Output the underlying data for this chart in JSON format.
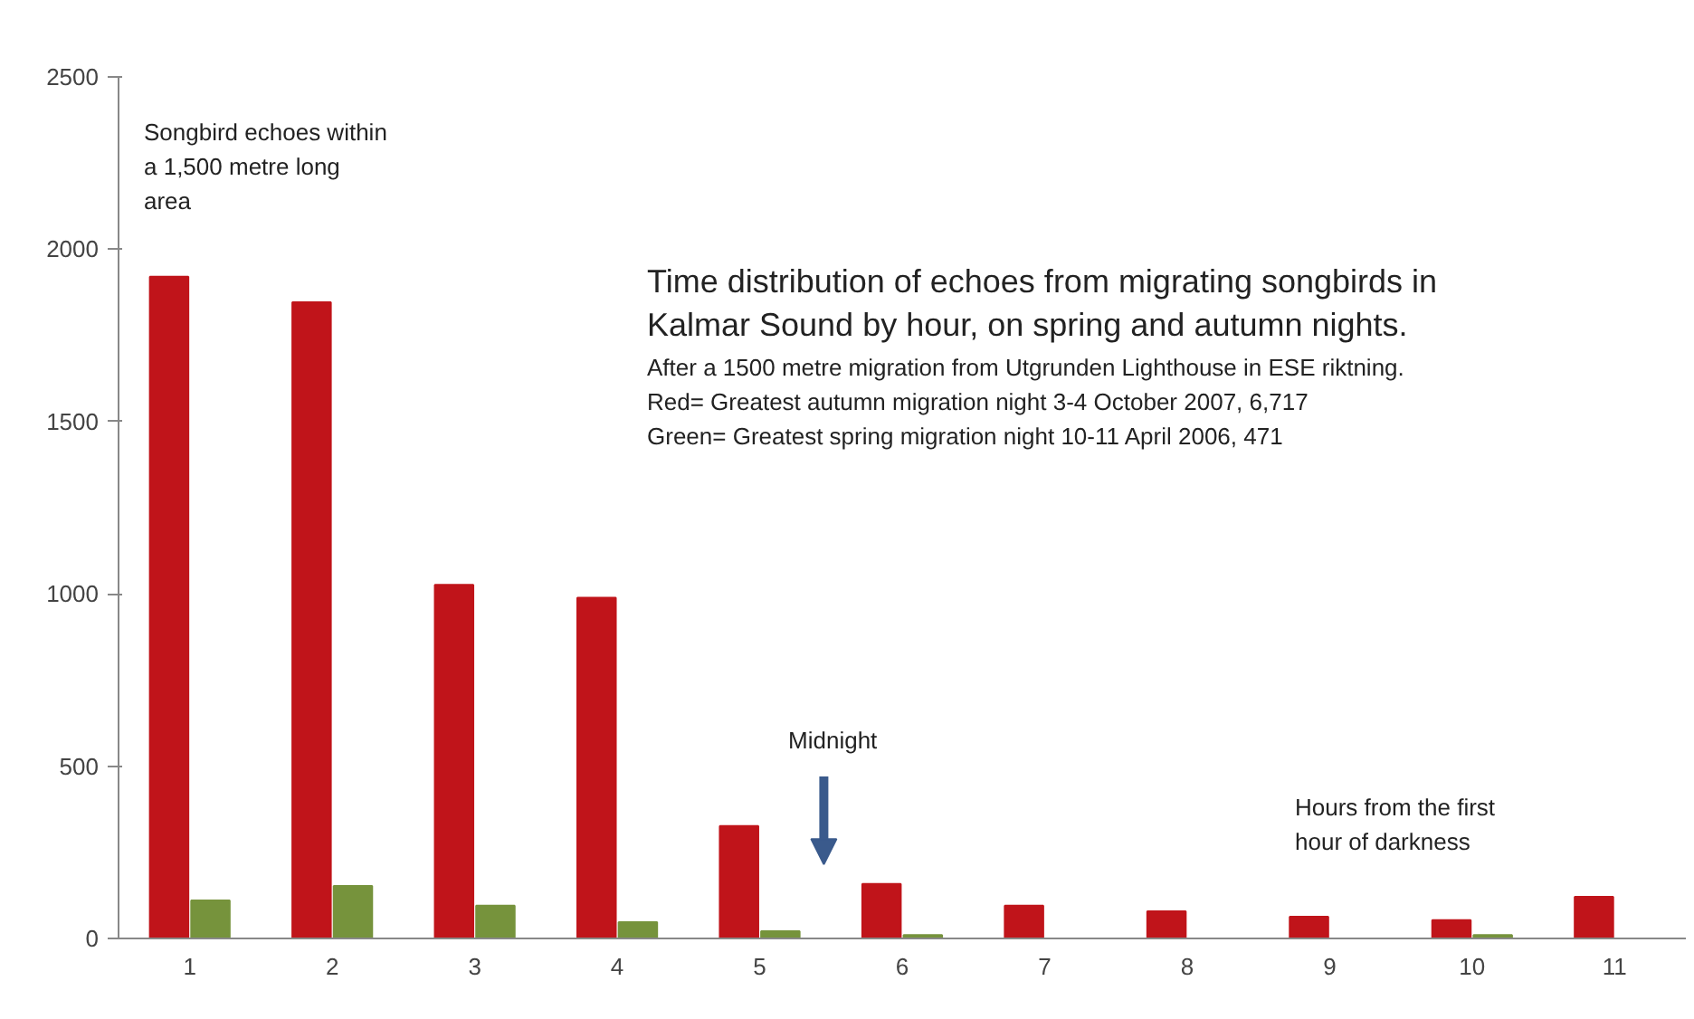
{
  "chart_data": {
    "type": "bar",
    "title": "Time distribution of echoes from migrating songbirds in Kalmar Sound by hour, on spring and autumn nights.",
    "subtitle": "After a 1500 metre migration from Utgrunden Lighthouse in ESE riktning.\nRed= Greatest autumn migration night 3-4 October 2007, 6,717\nGreen= Greatest spring migration night 10-11 April 2006,  471",
    "categories": [
      "1",
      "2",
      "3",
      "4",
      "5",
      "6",
      "7",
      "8",
      "9",
      "10",
      "11"
    ],
    "series": [
      {
        "color": "#c0141a",
        "values": [
          1920,
          1846,
          1026,
          989,
          326,
          158,
          95,
          79,
          63,
          53,
          121
        ]
      },
      {
        "color": "#76933c",
        "values": [
          110,
          152,
          95,
          47,
          21,
          10,
          0,
          0,
          0,
          10,
          0
        ]
      }
    ],
    "ylim": [
      0,
      2500
    ],
    "yticks": [
      0,
      500,
      1000,
      1500,
      2000,
      2500
    ],
    "grid": false,
    "annotations": [
      "Songbird echoes within\na 1,500 metre long\narea",
      "Midnight",
      "Hours from the first\nhour of darkness"
    ]
  }
}
